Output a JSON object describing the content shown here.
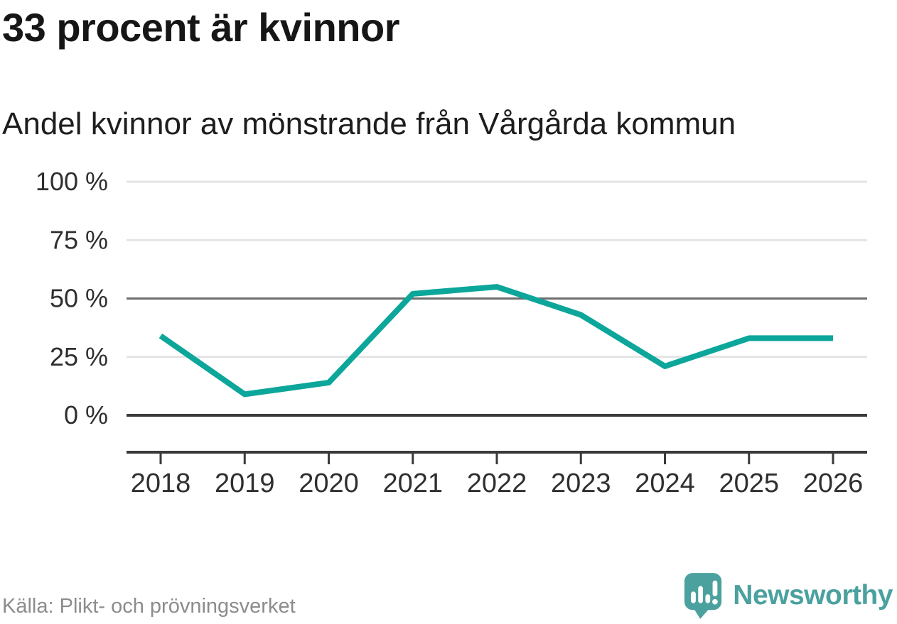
{
  "header": {
    "title": "33 procent är kvinnor",
    "subtitle": "Andel kvinnor av mönstrande från Vårgårda kommun"
  },
  "footer": {
    "source": "Källa: Plikt- och prövningsverket",
    "brand": "Newsworthy"
  },
  "colors": {
    "line": "#0ca69a",
    "grid_light": "#e4e4e4",
    "grid_mid": "#6e6e6e",
    "axis_dark": "#3a3a3a",
    "tick_text": "#2f2f2f",
    "brand": "#4ba19e",
    "source_text": "#8c8c8c"
  },
  "chart_data": {
    "type": "line",
    "title": "33 procent är kvinnor",
    "subtitle": "Andel kvinnor av mönstrande från Vårgårda kommun",
    "source": "Källa: Plikt- och prövningsverket",
    "categories": [
      "2018",
      "2019",
      "2020",
      "2021",
      "2022",
      "2023",
      "2024",
      "2025",
      "2026"
    ],
    "series": [
      {
        "name": "Andel kvinnor av mönstrande",
        "values": [
          34,
          9,
          14,
          52,
          55,
          43,
          21,
          33,
          33
        ]
      }
    ],
    "unit": "%",
    "ylim": [
      0,
      100
    ],
    "yticks": [
      {
        "value": 0,
        "label": "0 %"
      },
      {
        "value": 25,
        "label": "25 %"
      },
      {
        "value": 50,
        "label": "50 %"
      },
      {
        "value": 75,
        "label": "75 %"
      },
      {
        "value": 100,
        "label": "100 %"
      }
    ],
    "emphasized_gridlines": [
      0,
      50
    ],
    "grid": "horizontal",
    "legend": "none"
  }
}
